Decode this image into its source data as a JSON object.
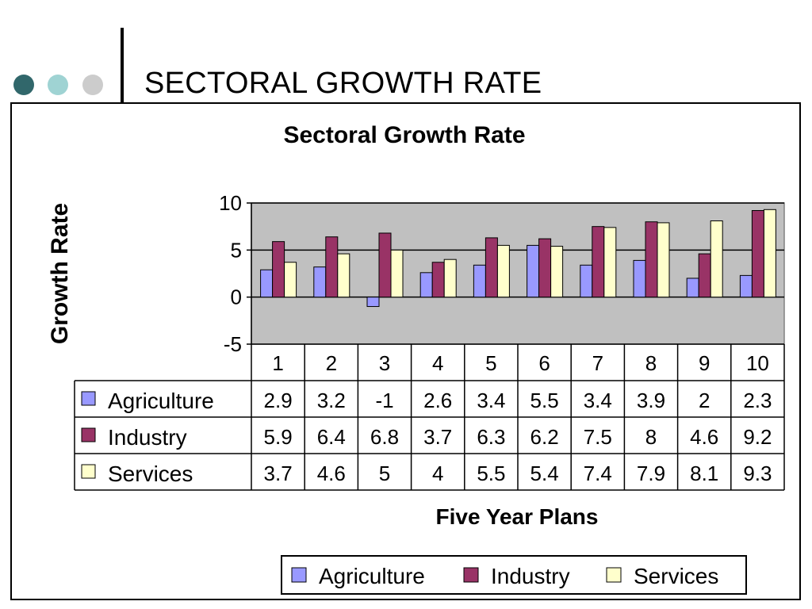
{
  "slide": {
    "title": "SECTORAL GROWTH RATE",
    "dot_colors": [
      "#31676b",
      "#9fd3d3",
      "#cccccc"
    ]
  },
  "chart_data": {
    "type": "bar",
    "title": "Sectoral Growth Rate",
    "xlabel": "Five Year Plans",
    "ylabel": "Growth Rate",
    "categories": [
      "1",
      "2",
      "3",
      "4",
      "5",
      "6",
      "7",
      "8",
      "9",
      "10"
    ],
    "ylim": [
      -5,
      10
    ],
    "yticks": [
      10,
      5,
      0,
      -5
    ],
    "grid": true,
    "legend_position": "bottom",
    "data_table": true,
    "series": [
      {
        "name": "Agriculture",
        "color": "#9999ff",
        "values": [
          2.9,
          3.2,
          -1,
          2.6,
          3.4,
          5.5,
          3.4,
          3.9,
          2,
          2.3
        ]
      },
      {
        "name": "Industry",
        "color": "#993366",
        "values": [
          5.9,
          6.4,
          6.8,
          3.7,
          6.3,
          6.2,
          7.5,
          8,
          4.6,
          9.2
        ]
      },
      {
        "name": "Services",
        "color": "#ffffcc",
        "values": [
          3.7,
          4.6,
          5,
          4,
          5.5,
          5.4,
          7.4,
          7.9,
          8.1,
          9.3
        ]
      }
    ],
    "plot_area_color": "#c0c0c0"
  }
}
